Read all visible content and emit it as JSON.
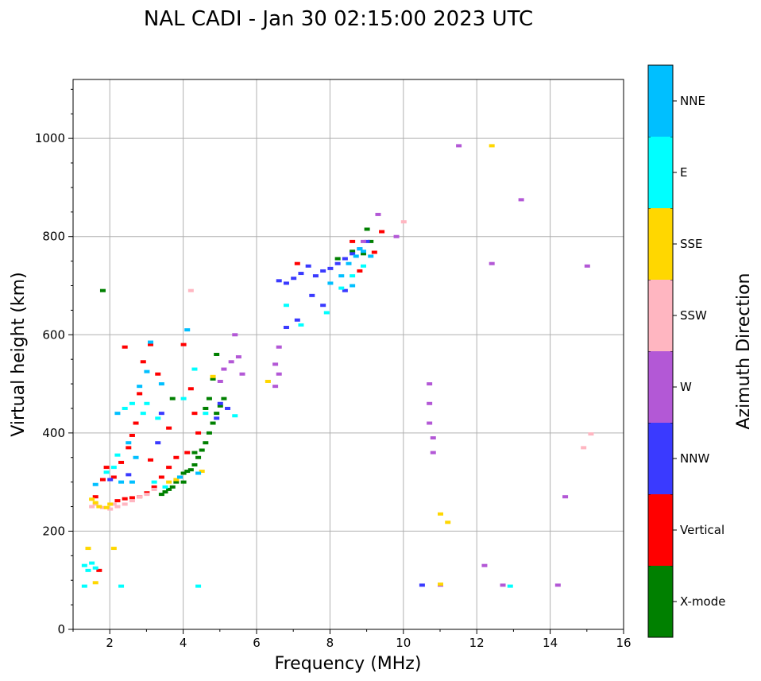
{
  "chart_data": {
    "type": "scatter",
    "title": "NAL CADI - Jan 30 02:15:00 2023 UTC",
    "xlabel": "Frequency (MHz)",
    "ylabel": "Virtual height (km)",
    "xlim": [
      1,
      16
    ],
    "ylim": [
      0,
      1120
    ],
    "xticks": [
      2,
      4,
      6,
      8,
      10,
      12,
      14,
      16
    ],
    "yticks": [
      0,
      200,
      400,
      600,
      800,
      1000
    ],
    "grid": true,
    "colorbar": {
      "title": "Azimuth Direction",
      "categories": [
        {
          "name": "X-mode",
          "color": "#008000"
        },
        {
          "name": "Vertical",
          "color": "#ff0000"
        },
        {
          "name": "NNW",
          "color": "#3a3aff"
        },
        {
          "name": "W",
          "color": "#b358d6"
        },
        {
          "name": "SSW",
          "color": "#ffb6c1"
        },
        {
          "name": "SSE",
          "color": "#ffd700"
        },
        {
          "name": "E",
          "color": "#00ffff"
        },
        {
          "name": "NNE",
          "color": "#00bfff"
        }
      ]
    },
    "series": [
      {
        "name": "X-mode",
        "points": [
          [
            3.4,
            275
          ],
          [
            3.5,
            280
          ],
          [
            3.6,
            285
          ],
          [
            3.7,
            290
          ],
          [
            3.8,
            300
          ],
          [
            3.9,
            310
          ],
          [
            4.0,
            318
          ],
          [
            4.1,
            322
          ],
          [
            4.2,
            325
          ],
          [
            4.3,
            335
          ],
          [
            4.4,
            350
          ],
          [
            4.5,
            365
          ],
          [
            4.6,
            380
          ],
          [
            4.7,
            400
          ],
          [
            4.8,
            420
          ],
          [
            4.9,
            440
          ],
          [
            5.0,
            455
          ],
          [
            5.1,
            470
          ],
          [
            4.9,
            560
          ],
          [
            4.8,
            510
          ],
          [
            4.7,
            470
          ],
          [
            4.6,
            450
          ],
          [
            4.0,
            300
          ],
          [
            3.7,
            470
          ],
          [
            4.3,
            360
          ],
          [
            8.2,
            755
          ],
          [
            8.6,
            770
          ],
          [
            9.0,
            815
          ],
          [
            9.1,
            790
          ],
          [
            1.8,
            690
          ],
          [
            8.9,
            765
          ]
        ]
      },
      {
        "name": "Vertical",
        "points": [
          [
            2.2,
            262
          ],
          [
            2.4,
            266
          ],
          [
            2.6,
            268
          ],
          [
            2.8,
            270
          ],
          [
            3.0,
            278
          ],
          [
            3.2,
            290
          ],
          [
            3.4,
            310
          ],
          [
            3.6,
            330
          ],
          [
            3.8,
            350
          ],
          [
            1.9,
            330
          ],
          [
            2.1,
            310
          ],
          [
            2.3,
            340
          ],
          [
            2.5,
            370
          ],
          [
            2.6,
            395
          ],
          [
            2.7,
            420
          ],
          [
            2.8,
            480
          ],
          [
            2.9,
            545
          ],
          [
            3.1,
            580
          ],
          [
            3.3,
            520
          ],
          [
            2.4,
            575
          ],
          [
            4.0,
            580
          ],
          [
            4.2,
            490
          ],
          [
            4.3,
            440
          ],
          [
            3.6,
            410
          ],
          [
            4.1,
            360
          ],
          [
            1.8,
            305
          ],
          [
            8.6,
            790
          ],
          [
            9.4,
            810
          ],
          [
            9.2,
            768
          ],
          [
            8.8,
            730
          ],
          [
            7.1,
            745
          ],
          [
            1.7,
            120
          ],
          [
            1.6,
            270
          ],
          [
            3.1,
            345
          ],
          [
            4.4,
            400
          ]
        ]
      },
      {
        "name": "NNW",
        "points": [
          [
            6.6,
            710
          ],
          [
            6.8,
            705
          ],
          [
            7.0,
            715
          ],
          [
            7.2,
            725
          ],
          [
            7.6,
            720
          ],
          [
            7.8,
            730
          ],
          [
            8.0,
            735
          ],
          [
            8.2,
            745
          ],
          [
            8.4,
            755
          ],
          [
            8.6,
            765
          ],
          [
            8.8,
            775
          ],
          [
            9.0,
            790
          ],
          [
            7.4,
            740
          ],
          [
            6.8,
            615
          ],
          [
            7.1,
            630
          ],
          [
            7.8,
            660
          ],
          [
            10.5,
            90
          ],
          [
            2.0,
            305
          ],
          [
            2.5,
            315
          ],
          [
            3.3,
            380
          ],
          [
            5.0,
            460
          ],
          [
            4.9,
            430
          ],
          [
            8.4,
            690
          ],
          [
            7.5,
            680
          ],
          [
            5.2,
            450
          ],
          [
            3.4,
            440
          ]
        ]
      },
      {
        "name": "W",
        "points": [
          [
            5.1,
            530
          ],
          [
            5.3,
            545
          ],
          [
            5.5,
            555
          ],
          [
            5.4,
            600
          ],
          [
            5.6,
            520
          ],
          [
            6.5,
            540
          ],
          [
            6.6,
            520
          ],
          [
            6.5,
            495
          ],
          [
            10.7,
            500
          ],
          [
            10.7,
            460
          ],
          [
            10.7,
            420
          ],
          [
            10.8,
            390
          ],
          [
            10.8,
            360
          ],
          [
            12.4,
            745
          ],
          [
            13.2,
            875
          ],
          [
            15.0,
            740
          ],
          [
            14.4,
            270
          ],
          [
            14.2,
            90
          ],
          [
            11.5,
            985
          ],
          [
            12.2,
            130
          ],
          [
            9.3,
            845
          ],
          [
            9.8,
            800
          ],
          [
            8.9,
            790
          ],
          [
            5.0,
            505
          ],
          [
            6.6,
            575
          ],
          [
            12.7,
            90
          ],
          [
            11.0,
            90
          ]
        ]
      },
      {
        "name": "SSW",
        "points": [
          [
            1.6,
            255
          ],
          [
            1.8,
            248
          ],
          [
            2.0,
            245
          ],
          [
            2.2,
            250
          ],
          [
            2.4,
            255
          ],
          [
            2.6,
            262
          ],
          [
            2.8,
            270
          ],
          [
            3.0,
            275
          ],
          [
            3.2,
            285
          ],
          [
            2.1,
            255
          ],
          [
            4.2,
            690
          ],
          [
            14.9,
            370
          ],
          [
            15.1,
            398
          ],
          [
            1.5,
            250
          ],
          [
            10.0,
            830
          ]
        ]
      },
      {
        "name": "SSE",
        "points": [
          [
            1.5,
            265
          ],
          [
            1.6,
            258
          ],
          [
            1.7,
            250
          ],
          [
            1.9,
            248
          ],
          [
            2.0,
            255
          ],
          [
            3.8,
            305
          ],
          [
            4.5,
            322
          ],
          [
            6.3,
            505
          ],
          [
            12.4,
            985
          ],
          [
            11.0,
            235
          ],
          [
            11.2,
            218
          ],
          [
            1.4,
            165
          ],
          [
            2.1,
            165
          ],
          [
            1.6,
            95
          ],
          [
            11.0,
            92
          ],
          [
            4.8,
            515
          ],
          [
            3.6,
            300
          ]
        ]
      },
      {
        "name": "E",
        "points": [
          [
            1.3,
            130
          ],
          [
            1.4,
            120
          ],
          [
            1.5,
            135
          ],
          [
            1.6,
            125
          ],
          [
            1.3,
            88
          ],
          [
            2.3,
            88
          ],
          [
            4.4,
            88
          ],
          [
            12.9,
            88
          ],
          [
            2.4,
            450
          ],
          [
            2.6,
            460
          ],
          [
            3.0,
            460
          ],
          [
            2.9,
            440
          ],
          [
            3.3,
            430
          ],
          [
            1.9,
            320
          ],
          [
            2.1,
            330
          ],
          [
            2.2,
            355
          ],
          [
            3.2,
            300
          ],
          [
            3.5,
            290
          ],
          [
            4.3,
            530
          ],
          [
            4.0,
            470
          ],
          [
            7.9,
            645
          ],
          [
            7.2,
            620
          ],
          [
            6.8,
            660
          ],
          [
            8.3,
            695
          ],
          [
            8.6,
            720
          ],
          [
            8.9,
            740
          ],
          [
            4.6,
            440
          ],
          [
            5.4,
            435
          ]
        ]
      },
      {
        "name": "NNE",
        "points": [
          [
            8.5,
            745
          ],
          [
            8.7,
            760
          ],
          [
            8.9,
            770
          ],
          [
            9.1,
            760
          ],
          [
            8.3,
            720
          ],
          [
            8.6,
            700
          ],
          [
            8.0,
            705
          ],
          [
            2.2,
            440
          ],
          [
            2.5,
            380
          ],
          [
            2.7,
            350
          ],
          [
            2.8,
            495
          ],
          [
            3.0,
            525
          ],
          [
            2.3,
            300
          ],
          [
            2.6,
            300
          ],
          [
            1.6,
            295
          ],
          [
            4.4,
            318
          ],
          [
            3.9,
            310
          ],
          [
            3.1,
            585
          ],
          [
            4.1,
            610
          ],
          [
            3.4,
            500
          ],
          [
            8.8,
            775
          ]
        ]
      }
    ]
  }
}
